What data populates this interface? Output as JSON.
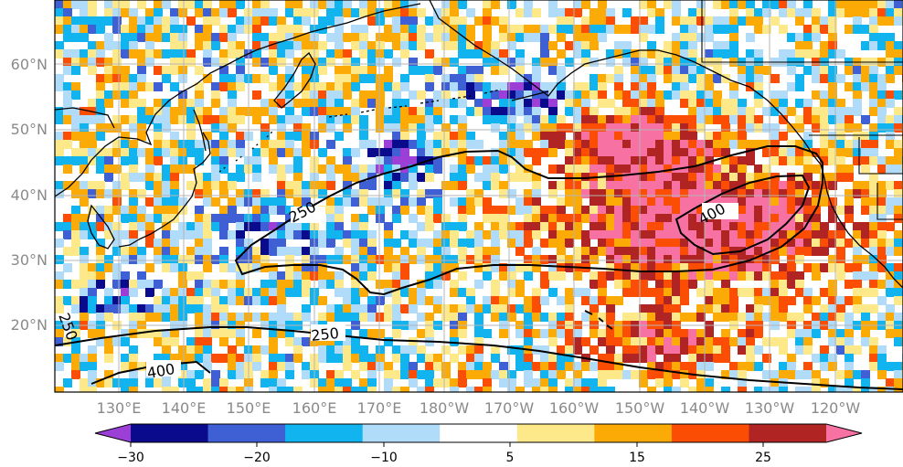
{
  "map": {
    "lat_labels": [
      "60°N",
      "50°N",
      "40°N",
      "30°N",
      "20°N"
    ],
    "lon_labels": [
      "130°E",
      "140°E",
      "150°E",
      "160°E",
      "170°E",
      "180°W",
      "170°W",
      "160°W",
      "150°W",
      "140°W",
      "130°W",
      "120°W"
    ],
    "contour_labels": [
      "250",
      "400",
      "250",
      "400",
      "250"
    ],
    "contour_color": "#000000"
  },
  "colorbar": {
    "tick_labels": [
      "−30",
      "−20",
      "−10",
      "5",
      "15",
      "25"
    ],
    "colors": [
      "#9b3fd6",
      "#0a0a8c",
      "#3f5fd4",
      "#12b4f0",
      "#b0dcfa",
      "#ffffff",
      "#fde98a",
      "#fcaa05",
      "#fc4d05",
      "#b02424",
      "#f772a3"
    ]
  }
}
